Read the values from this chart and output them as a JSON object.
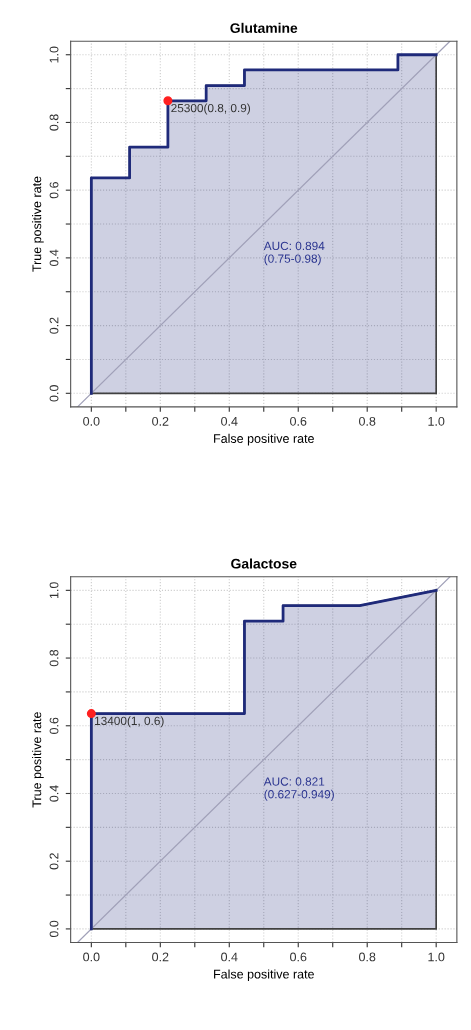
{
  "chart_data": [
    {
      "type": "area",
      "title": "Glutamine",
      "xlabel": "False positive rate",
      "ylabel": "True positive rate",
      "xlim": [
        -0.06,
        1.06
      ],
      "ylim": [
        -0.04,
        1.04
      ],
      "xticks": [
        {
          "value": 0,
          "label": "0.0"
        },
        {
          "value": 0.1,
          "label": null
        },
        {
          "value": 0.2,
          "label": "0.2"
        },
        {
          "value": 0.3,
          "label": null
        },
        {
          "value": 0.4,
          "label": "0.4"
        },
        {
          "value": 0.5,
          "label": null
        },
        {
          "value": 0.6,
          "label": "0.6"
        },
        {
          "value": 0.7,
          "label": null
        },
        {
          "value": 0.8,
          "label": "0.8"
        },
        {
          "value": 0.9,
          "label": null
        },
        {
          "value": 1,
          "label": "1.0"
        }
      ],
      "yticks": [
        {
          "value": 0,
          "label": "0.0"
        },
        {
          "value": 0.1,
          "label": null
        },
        {
          "value": 0.2,
          "label": "0.2"
        },
        {
          "value": 0.3,
          "label": null
        },
        {
          "value": 0.4,
          "label": "0.4"
        },
        {
          "value": 0.5,
          "label": null
        },
        {
          "value": 0.6,
          "label": "0.6"
        },
        {
          "value": 0.7,
          "label": null
        },
        {
          "value": 0.8,
          "label": "0.8"
        },
        {
          "value": 0.9,
          "label": null
        },
        {
          "value": 1,
          "label": "1.0"
        }
      ],
      "grid": true,
      "legend": false,
      "series": [
        {
          "color": "#1f2a7a",
          "x": [
            0,
            0,
            0.111,
            0.111,
            0.222,
            0.222,
            0.333,
            0.333,
            0.444,
            0.444,
            0.889,
            0.889,
            1
          ],
          "values": [
            0,
            0.636,
            0.636,
            0.727,
            0.727,
            0.864,
            0.864,
            0.909,
            0.909,
            0.955,
            0.955,
            1,
            1
          ]
        },
        {
          "type": "line",
          "color": "#a0a0b8",
          "x": [
            -0.04,
            1.04
          ],
          "values": [
            -0.04,
            1.04
          ]
        },
        {
          "type": "scatter",
          "color": "#ff2020",
          "x": [
            0.222
          ],
          "values": [
            0.864
          ]
        }
      ],
      "annotations": [
        {
          "text": "25300(0.8, 0.9)",
          "x": 0.222,
          "y": 0.864
        },
        "AUC: 0.894\n(0.75-0.98)"
      ]
    },
    {
      "type": "area",
      "title": "Galactose",
      "xlabel": "False positive rate",
      "ylabel": "True positive rate",
      "xlim": [
        -0.06,
        1.06
      ],
      "ylim": [
        -0.04,
        1.04
      ],
      "xticks": [
        {
          "value": 0,
          "label": "0.0"
        },
        {
          "value": 0.1,
          "label": null
        },
        {
          "value": 0.2,
          "label": "0.2"
        },
        {
          "value": 0.3,
          "label": null
        },
        {
          "value": 0.4,
          "label": "0.4"
        },
        {
          "value": 0.5,
          "label": null
        },
        {
          "value": 0.6,
          "label": "0.6"
        },
        {
          "value": 0.7,
          "label": null
        },
        {
          "value": 0.8,
          "label": "0.8"
        },
        {
          "value": 0.9,
          "label": null
        },
        {
          "value": 1,
          "label": "1.0"
        }
      ],
      "yticks": [
        {
          "value": 0,
          "label": "0.0"
        },
        {
          "value": 0.1,
          "label": null
        },
        {
          "value": 0.2,
          "label": "0.2"
        },
        {
          "value": 0.3,
          "label": null
        },
        {
          "value": 0.4,
          "label": "0.4"
        },
        {
          "value": 0.5,
          "label": null
        },
        {
          "value": 0.6,
          "label": "0.6"
        },
        {
          "value": 0.7,
          "label": null
        },
        {
          "value": 0.8,
          "label": "0.8"
        },
        {
          "value": 0.9,
          "label": null
        },
        {
          "value": 1,
          "label": "1.0"
        }
      ],
      "grid": true,
      "legend": false,
      "series": [
        {
          "color": "#1f2a7a",
          "x": [
            0,
            0,
            0.444,
            0.444,
            0.556,
            0.556,
            0.778,
            1
          ],
          "values": [
            0,
            0.636,
            0.636,
            0.909,
            0.909,
            0.955,
            0.955,
            1
          ]
        },
        {
          "type": "line",
          "color": "#a0a0b8",
          "x": [
            -0.04,
            1.04
          ],
          "values": [
            -0.04,
            1.04
          ]
        },
        {
          "type": "scatter",
          "color": "#ff2020",
          "x": [
            0
          ],
          "values": [
            0.636
          ]
        }
      ],
      "annotations": [
        {
          "text": "13400(1, 0.6)",
          "x": 0,
          "y": 0.636
        },
        "AUC: 0.821\n(0.627-0.949)"
      ]
    }
  ]
}
